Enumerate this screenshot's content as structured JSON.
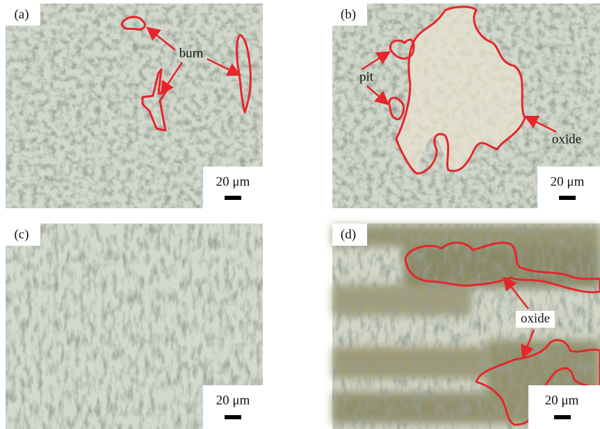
{
  "panels": [
    {
      "label": "(a)",
      "scale_bar": "20 μm",
      "annotations": [
        "burn"
      ]
    },
    {
      "label": "(b)",
      "scale_bar": "20 μm",
      "annotations": [
        "pit",
        "oxide"
      ]
    },
    {
      "label": "(c)",
      "scale_bar": "20 μm"
    },
    {
      "label": "(d)",
      "scale_bar": "20 μm",
      "annotations": [
        "oxide"
      ]
    }
  ]
}
